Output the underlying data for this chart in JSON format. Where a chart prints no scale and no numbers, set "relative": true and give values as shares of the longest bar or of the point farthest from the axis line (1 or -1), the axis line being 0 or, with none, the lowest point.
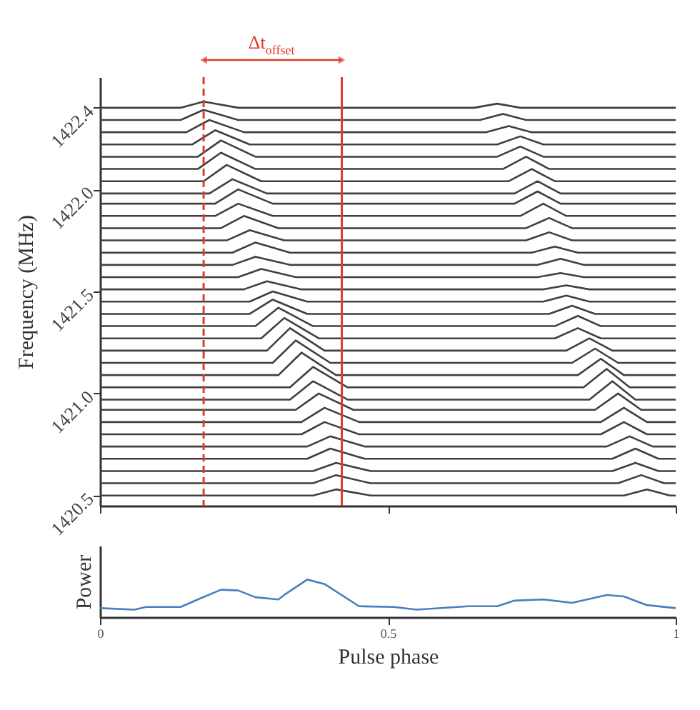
{
  "chart_data": [
    {
      "type": "line",
      "ylabel": "Frequency (MHz)",
      "xlim": [
        0,
        1
      ],
      "ylim": [
        1420.45,
        1422.55
      ],
      "xticks": [
        {
          "value": 0,
          "label": null
        },
        {
          "value": 0.5,
          "label": null
        },
        {
          "value": 1,
          "label": null
        }
      ],
      "yticks": [
        1420.5,
        {
          "value": 1421,
          "label": "1421.0"
        },
        1421.5,
        {
          "value": 1422,
          "label": "1422.0"
        },
        1422.4
      ],
      "tick_labels": "y",
      "grid": false,
      "ref_lines": [
        {
          "axis": "x",
          "value": 0.18,
          "label": null,
          "color": "#e03c28",
          "line_style": "dashed"
        },
        {
          "axis": "x",
          "value": 0.42,
          "label": null,
          "color": "#e03c28",
          "line_style": "solid"
        }
      ],
      "annotations": [
        "Δt$_{offset}$"
      ],
      "series": [
        {
          "color": "#404040",
          "x": [
            0,
            0.14,
            0.18,
            0.24,
            0.65,
            0.69,
            0.73,
            1
          ],
          "values": [
            1422.4,
            1422.4,
            1422.43,
            1422.4,
            1422.4,
            1422.42,
            1422.4,
            1422.4
          ]
        },
        {
          "color": "#404040",
          "x": [
            0,
            0.14,
            0.18,
            0.24,
            0.66,
            0.7,
            0.74,
            1
          ],
          "values": [
            1422.34,
            1422.34,
            1422.39,
            1422.34,
            1422.34,
            1422.37,
            1422.34,
            1422.34
          ]
        },
        {
          "color": "#404040",
          "x": [
            0,
            0.15,
            0.19,
            0.25,
            0.67,
            0.71,
            0.75,
            1
          ],
          "values": [
            1422.28,
            1422.28,
            1422.34,
            1422.28,
            1422.28,
            1422.31,
            1422.28,
            1422.28
          ]
        },
        {
          "color": "#404040",
          "x": [
            0,
            0.16,
            0.2,
            0.26,
            0.69,
            0.73,
            0.77,
            1
          ],
          "values": [
            1422.22,
            1422.22,
            1422.29,
            1422.22,
            1422.22,
            1422.26,
            1422.22,
            1422.22
          ]
        },
        {
          "color": "#404040",
          "x": [
            0,
            0.17,
            0.21,
            0.27,
            0.69,
            0.73,
            0.77,
            1
          ],
          "values": [
            1422.16,
            1422.16,
            1422.24,
            1422.16,
            1422.16,
            1422.21,
            1422.16,
            1422.16
          ]
        },
        {
          "color": "#404040",
          "x": [
            0,
            0.17,
            0.21,
            0.27,
            0.7,
            0.74,
            0.78,
            1
          ],
          "values": [
            1422.1,
            1422.1,
            1422.18,
            1422.1,
            1422.1,
            1422.16,
            1422.1,
            1422.1
          ]
        },
        {
          "color": "#404040",
          "x": [
            0,
            0.18,
            0.22,
            0.28,
            0.71,
            0.75,
            0.79,
            1
          ],
          "values": [
            1422.04,
            1422.04,
            1422.12,
            1422.04,
            1422.04,
            1422.1,
            1422.04,
            1422.04
          ]
        },
        {
          "color": "#404040",
          "x": [
            0,
            0.19,
            0.23,
            0.29,
            0.72,
            0.76,
            0.8,
            1
          ],
          "values": [
            1421.98,
            1421.98,
            1422.05,
            1421.98,
            1421.98,
            1422.04,
            1421.98,
            1421.98
          ]
        },
        {
          "color": "#404040",
          "x": [
            0,
            0.2,
            0.24,
            0.3,
            0.72,
            0.76,
            0.8,
            1
          ],
          "values": [
            1421.93,
            1421.93,
            1422.0,
            1421.93,
            1421.93,
            1421.99,
            1421.93,
            1421.93
          ]
        },
        {
          "color": "#404040",
          "x": [
            0,
            0.2,
            0.24,
            0.3,
            0.73,
            0.77,
            0.81,
            1
          ],
          "values": [
            1421.87,
            1421.87,
            1421.93,
            1421.87,
            1421.87,
            1421.93,
            1421.87,
            1421.87
          ]
        },
        {
          "color": "#404040",
          "x": [
            0,
            0.21,
            0.25,
            0.31,
            0.74,
            0.78,
            0.82,
            1
          ],
          "values": [
            1421.81,
            1421.81,
            1421.87,
            1421.81,
            1421.81,
            1421.86,
            1421.81,
            1421.81
          ]
        },
        {
          "color": "#404040",
          "x": [
            0,
            0.22,
            0.26,
            0.32,
            0.74,
            0.78,
            0.82,
            1
          ],
          "values": [
            1421.75,
            1421.75,
            1421.8,
            1421.75,
            1421.75,
            1421.79,
            1421.75,
            1421.75
          ]
        },
        {
          "color": "#404040",
          "x": [
            0,
            0.23,
            0.27,
            0.33,
            0.75,
            0.79,
            0.83,
            1
          ],
          "values": [
            1421.69,
            1421.69,
            1421.74,
            1421.69,
            1421.69,
            1421.72,
            1421.69,
            1421.69
          ]
        },
        {
          "color": "#404040",
          "x": [
            0,
            0.23,
            0.27,
            0.33,
            0.76,
            0.8,
            0.84,
            1
          ],
          "values": [
            1421.63,
            1421.63,
            1421.67,
            1421.63,
            1421.63,
            1421.66,
            1421.63,
            1421.63
          ]
        },
        {
          "color": "#404040",
          "x": [
            0,
            0.24,
            0.28,
            0.34,
            0.76,
            0.8,
            0.84,
            1
          ],
          "values": [
            1421.57,
            1421.57,
            1421.61,
            1421.57,
            1421.57,
            1421.59,
            1421.57,
            1421.57
          ]
        },
        {
          "color": "#404040",
          "x": [
            0,
            0.25,
            0.29,
            0.35,
            0.77,
            0.81,
            0.85,
            1
          ],
          "values": [
            1421.51,
            1421.51,
            1421.55,
            1421.51,
            1421.51,
            1421.53,
            1421.51,
            1421.51
          ]
        },
        {
          "color": "#404040",
          "x": [
            0,
            0.26,
            0.3,
            0.36,
            0.77,
            0.81,
            0.85,
            1
          ],
          "values": [
            1421.45,
            1421.45,
            1421.5,
            1421.45,
            1421.45,
            1421.48,
            1421.45,
            1421.45
          ]
        },
        {
          "color": "#404040",
          "x": [
            0,
            0.26,
            0.3,
            0.36,
            0.78,
            0.82,
            0.86,
            1
          ],
          "values": [
            1421.39,
            1421.39,
            1421.46,
            1421.39,
            1421.39,
            1421.43,
            1421.39,
            1421.39
          ]
        },
        {
          "color": "#404040",
          "x": [
            0,
            0.27,
            0.31,
            0.37,
            0.79,
            0.83,
            0.87,
            1
          ],
          "values": [
            1421.33,
            1421.33,
            1421.42,
            1421.33,
            1421.33,
            1421.38,
            1421.33,
            1421.33
          ]
        },
        {
          "color": "#404040",
          "x": [
            0,
            0.28,
            0.32,
            0.38,
            0.79,
            0.83,
            0.87,
            1
          ],
          "values": [
            1421.27,
            1421.27,
            1421.37,
            1421.27,
            1421.27,
            1421.32,
            1421.27,
            1421.27
          ]
        },
        {
          "color": "#404040",
          "x": [
            0,
            0.29,
            0.33,
            0.39,
            0.81,
            0.85,
            0.89,
            1
          ],
          "values": [
            1421.21,
            1421.21,
            1421.32,
            1421.21,
            1421.21,
            1421.27,
            1421.21,
            1421.21
          ]
        },
        {
          "color": "#404040",
          "x": [
            0,
            0.3,
            0.34,
            0.4,
            0.82,
            0.86,
            0.9,
            1
          ],
          "values": [
            1421.15,
            1421.15,
            1421.26,
            1421.15,
            1421.15,
            1421.22,
            1421.15,
            1421.15
          ]
        },
        {
          "color": "#404040",
          "x": [
            0,
            0.31,
            0.35,
            0.41,
            0.83,
            0.87,
            0.91,
            1
          ],
          "values": [
            1421.09,
            1421.09,
            1421.2,
            1421.09,
            1421.09,
            1421.17,
            1421.09,
            1421.09
          ]
        },
        {
          "color": "#404040",
          "x": [
            0,
            0.33,
            0.37,
            0.43,
            0.84,
            0.88,
            0.92,
            1
          ],
          "values": [
            1421.03,
            1421.03,
            1421.13,
            1421.03,
            1421.03,
            1421.12,
            1421.03,
            1421.03
          ]
        },
        {
          "color": "#404040",
          "x": [
            0,
            0.33,
            0.37,
            0.43,
            0.85,
            0.89,
            0.93,
            1
          ],
          "values": [
            1420.97,
            1420.97,
            1421.06,
            1420.97,
            1420.97,
            1421.06,
            1420.97,
            1420.97
          ]
        },
        {
          "color": "#404040",
          "x": [
            0,
            0.34,
            0.38,
            0.44,
            0.86,
            0.9,
            0.94,
            1
          ],
          "values": [
            1420.92,
            1420.92,
            1421.0,
            1420.92,
            1420.92,
            1421.0,
            1420.92,
            1420.92
          ]
        },
        {
          "color": "#404040",
          "x": [
            0,
            0.35,
            0.39,
            0.45,
            0.87,
            0.91,
            0.95,
            1
          ],
          "values": [
            1420.86,
            1420.86,
            1420.93,
            1420.86,
            1420.86,
            1420.93,
            1420.86,
            1420.86
          ]
        },
        {
          "color": "#404040",
          "x": [
            0,
            0.35,
            0.39,
            0.45,
            0.87,
            0.91,
            0.95,
            1
          ],
          "values": [
            1420.8,
            1420.8,
            1420.86,
            1420.8,
            1420.8,
            1420.86,
            1420.8,
            1420.8
          ]
        },
        {
          "color": "#404040",
          "x": [
            0,
            0.36,
            0.4,
            0.46,
            0.88,
            0.92,
            0.96,
            1
          ],
          "values": [
            1420.74,
            1420.74,
            1420.79,
            1420.74,
            1420.74,
            1420.79,
            1420.74,
            1420.74
          ]
        },
        {
          "color": "#404040",
          "x": [
            0,
            0.36,
            0.4,
            0.46,
            0.89,
            0.93,
            0.97,
            1
          ],
          "values": [
            1420.68,
            1420.68,
            1420.73,
            1420.68,
            1420.68,
            1420.73,
            1420.68,
            1420.68
          ]
        },
        {
          "color": "#404040",
          "x": [
            0,
            0.37,
            0.41,
            0.47,
            0.89,
            0.93,
            0.97,
            1
          ],
          "values": [
            1420.62,
            1420.62,
            1420.66,
            1420.62,
            1420.62,
            1420.66,
            1420.62,
            1420.62
          ]
        },
        {
          "color": "#404040",
          "x": [
            0,
            0.37,
            0.41,
            0.47,
            0.9,
            0.94,
            0.98,
            1
          ],
          "values": [
            1420.56,
            1420.56,
            1420.6,
            1420.56,
            1420.56,
            1420.6,
            1420.56,
            1420.56
          ]
        },
        {
          "color": "#404040",
          "x": [
            0,
            0.37,
            0.41,
            0.47,
            0.91,
            0.95,
            0.99,
            1
          ],
          "values": [
            1420.5,
            1420.5,
            1420.53,
            1420.5,
            1420.5,
            1420.53,
            1420.5,
            1420.5
          ]
        }
      ]
    },
    {
      "type": "line",
      "relative": true,
      "xlabel": "Pulse phase",
      "ylabel": "Power",
      "xlim": [
        0,
        1
      ],
      "xticks": [
        0,
        0.5,
        1
      ],
      "grid": false,
      "series": [
        {
          "color": "#4a7ebf",
          "x": [
            0,
            0.06,
            0.08,
            0.14,
            0.17,
            0.21,
            0.24,
            0.27,
            0.31,
            0.32,
            0.36,
            0.39,
            0.45,
            0.51,
            0.55,
            0.64,
            0.69,
            0.72,
            0.77,
            0.82,
            0.88,
            0.91,
            0.95,
            1
          ],
          "values": [
            0.24,
            0.2,
            0.27,
            0.27,
            0.47,
            0.73,
            0.71,
            0.53,
            0.47,
            0.59,
            1,
            0.88,
            0.29,
            0.27,
            0.2,
            0.29,
            0.29,
            0.44,
            0.47,
            0.38,
            0.59,
            0.55,
            0.32,
            0.24
          ]
        }
      ]
    }
  ]
}
